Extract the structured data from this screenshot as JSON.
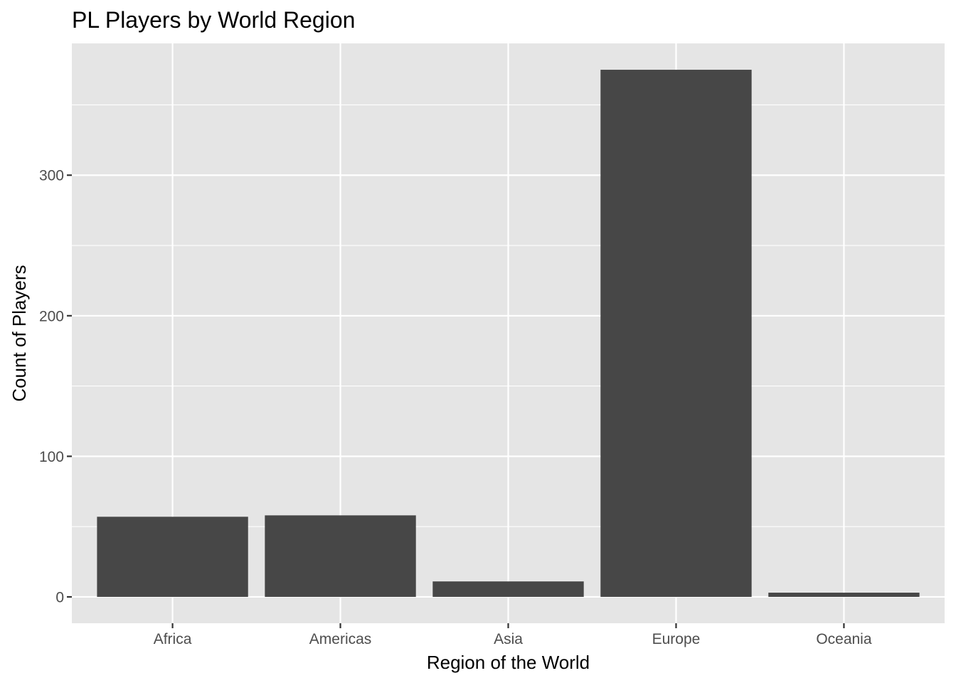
{
  "chart_data": {
    "type": "bar",
    "title": "PL Players by World Region",
    "xlabel": "Region of the World",
    "ylabel": "Count of Players",
    "categories": [
      "Africa",
      "Americas",
      "Asia",
      "Europe",
      "Oceania"
    ],
    "values": [
      57,
      58,
      11,
      375,
      3
    ],
    "ylim": [
      -18.75,
      393.75
    ],
    "y_ticks": [
      0,
      100,
      200,
      300
    ],
    "y_tick_labels": [
      "0",
      "100",
      "200",
      "300"
    ],
    "grid": true,
    "legend": "none",
    "bar_color": "#474747",
    "panel_color": "#e5e5e5"
  }
}
